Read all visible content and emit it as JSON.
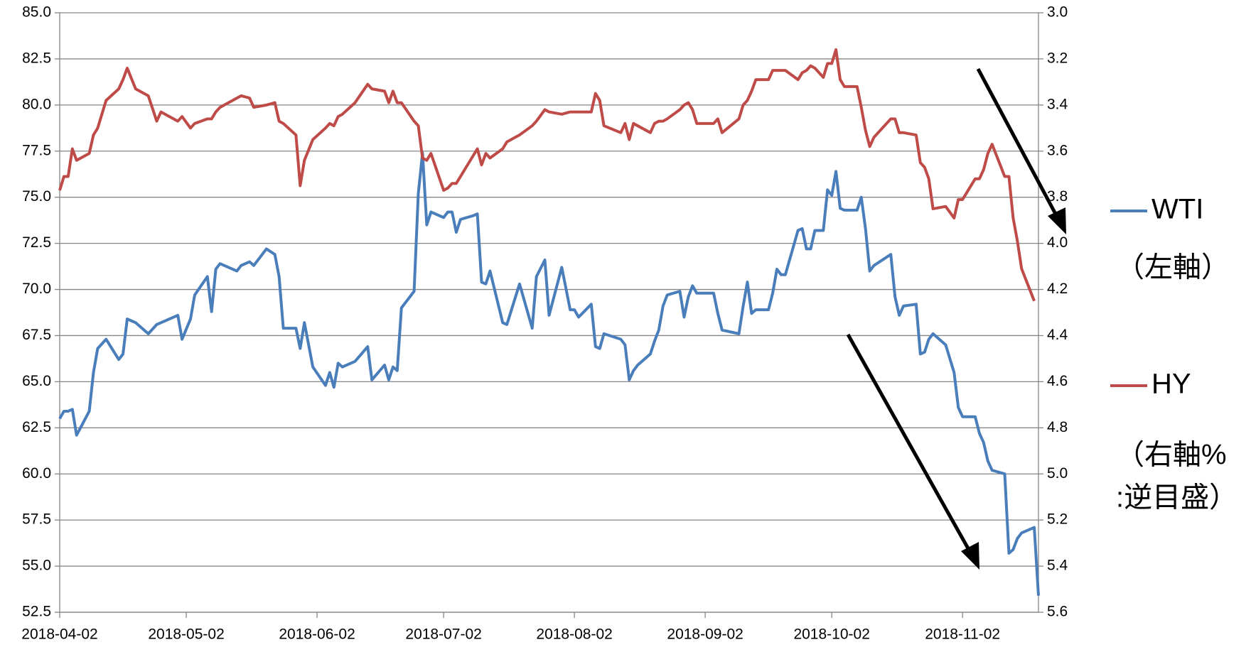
{
  "chart_data": {
    "type": "line",
    "xlim": [
      "2018-04-02",
      "2018-11-20"
    ],
    "xticks": [
      "2018-04-02",
      "2018-05-02",
      "2018-06-02",
      "2018-07-02",
      "2018-08-02",
      "2018-09-02",
      "2018-10-02",
      "2018-11-02"
    ],
    "ylim": [
      52.5,
      85.0
    ],
    "yticks": [
      {
        "value": 52.5,
        "label": "52.5"
      },
      {
        "value": 55,
        "label": "55.0"
      },
      57.5,
      {
        "value": 60,
        "label": "60.0"
      },
      62.5,
      {
        "value": 65,
        "label": "65.0"
      },
      67.5,
      {
        "value": 70,
        "label": "70.0"
      },
      72.5,
      {
        "value": 75,
        "label": "75.0"
      },
      77.5,
      {
        "value": 80,
        "label": "80.0"
      },
      82.5,
      {
        "value": 85,
        "label": "85.0"
      }
    ],
    "y2lim": [
      3.0,
      5.6
    ],
    "y2_reversed": true,
    "y2ticks": [
      {
        "value": 3,
        "label": "3.0"
      },
      3.2,
      3.4,
      3.6,
      3.8,
      {
        "value": 4,
        "label": "4.0"
      },
      4.2,
      4.4,
      4.6,
      4.8,
      {
        "value": 5,
        "label": "5.0"
      },
      5.2,
      5.4,
      5.6
    ],
    "grid": true,
    "legend": "right",
    "x": [
      "2018-04-02",
      "2018-04-03",
      "2018-04-04",
      "2018-04-05",
      "2018-04-06",
      "2018-04-09",
      "2018-04-10",
      "2018-04-11",
      "2018-04-13",
      "2018-04-16",
      "2018-04-17",
      "2018-04-18",
      "2018-04-20",
      "2018-04-23",
      "2018-04-25",
      "2018-04-26",
      "2018-04-30",
      "2018-05-01",
      "2018-05-03",
      "2018-05-04",
      "2018-05-07",
      "2018-05-08",
      "2018-05-09",
      "2018-05-10",
      "2018-05-14",
      "2018-05-15",
      "2018-05-17",
      "2018-05-18",
      "2018-05-21",
      "2018-05-23",
      "2018-05-24",
      "2018-05-25",
      "2018-05-28",
      "2018-05-29",
      "2018-05-30",
      "2018-06-01",
      "2018-06-04",
      "2018-06-05",
      "2018-06-06",
      "2018-06-07",
      "2018-06-08",
      "2018-06-11",
      "2018-06-14",
      "2018-06-15",
      "2018-06-18",
      "2018-06-19",
      "2018-06-20",
      "2018-06-21",
      "2018-06-22",
      "2018-06-25",
      "2018-06-26",
      "2018-06-27",
      "2018-06-28",
      "2018-06-29",
      "2018-07-02",
      "2018-07-03",
      "2018-07-04",
      "2018-07-05",
      "2018-07-06",
      "2018-07-09",
      "2018-07-10",
      "2018-07-11",
      "2018-07-12",
      "2018-07-13",
      "2018-07-16",
      "2018-07-17",
      "2018-07-20",
      "2018-07-23",
      "2018-07-24",
      "2018-07-26",
      "2018-07-27",
      "2018-07-30",
      "2018-08-01",
      "2018-08-02",
      "2018-08-03",
      "2018-08-06",
      "2018-08-07",
      "2018-08-08",
      "2018-08-09",
      "2018-08-13",
      "2018-08-14",
      "2018-08-15",
      "2018-08-16",
      "2018-08-17",
      "2018-08-20",
      "2018-08-21",
      "2018-08-22",
      "2018-08-23",
      "2018-08-24",
      "2018-08-27",
      "2018-08-28",
      "2018-08-29",
      "2018-08-30",
      "2018-08-31",
      "2018-09-04",
      "2018-09-05",
      "2018-09-06",
      "2018-09-10",
      "2018-09-11",
      "2018-09-12",
      "2018-09-13",
      "2018-09-14",
      "2018-09-17",
      "2018-09-18",
      "2018-09-19",
      "2018-09-20",
      "2018-09-21",
      "2018-09-24",
      "2018-09-25",
      "2018-09-26",
      "2018-09-27",
      "2018-09-28",
      "2018-09-30",
      "2018-10-01",
      "2018-10-02",
      "2018-10-03",
      "2018-10-04",
      "2018-10-05",
      "2018-10-08",
      "2018-10-09",
      "2018-10-10",
      "2018-10-11",
      "2018-10-12",
      "2018-10-16",
      "2018-10-17",
      "2018-10-18",
      "2018-10-19",
      "2018-10-22",
      "2018-10-23",
      "2018-10-24",
      "2018-10-25",
      "2018-10-26",
      "2018-10-29",
      "2018-10-31",
      "2018-11-01",
      "2018-11-02",
      "2018-11-05",
      "2018-11-06",
      "2018-11-07",
      "2018-11-08",
      "2018-11-09",
      "2018-11-12",
      "2018-11-13",
      "2018-11-14",
      "2018-11-15",
      "2018-11-16",
      "2018-11-19",
      "2018-11-20"
    ],
    "series": [
      {
        "name": "WTI",
        "note": [
          "（左軸）"
        ],
        "color": "#4a7ebb",
        "axis": "y",
        "values": [
          63.0,
          63.4,
          63.4,
          63.5,
          62.1,
          63.4,
          65.5,
          66.8,
          67.3,
          66.2,
          66.5,
          68.4,
          68.2,
          67.6,
          68.1,
          68.2,
          68.6,
          67.3,
          68.4,
          69.7,
          70.7,
          68.8,
          71.1,
          71.4,
          71.0,
          71.3,
          71.5,
          71.3,
          72.2,
          71.9,
          70.7,
          67.9,
          67.9,
          66.8,
          68.2,
          65.8,
          64.8,
          65.5,
          64.7,
          66.0,
          65.8,
          66.1,
          66.9,
          65.1,
          65.9,
          65.1,
          65.8,
          65.6,
          69.0,
          69.9,
          75.2,
          77.4,
          73.5,
          74.2,
          73.9,
          74.2,
          74.2,
          73.1,
          73.8,
          74.0,
          74.1,
          70.4,
          70.3,
          71.0,
          68.2,
          68.1,
          70.3,
          67.9,
          70.7,
          71.6,
          68.6,
          71.2,
          68.9,
          68.9,
          68.5,
          69.2,
          66.9,
          66.8,
          67.6,
          67.3,
          67.0,
          65.1,
          65.6,
          65.9,
          66.5,
          67.2,
          67.8,
          69.1,
          69.7,
          69.9,
          68.5,
          69.6,
          70.2,
          69.8,
          69.8,
          68.7,
          67.8,
          67.6,
          69.1,
          70.4,
          68.7,
          68.9,
          68.9,
          69.8,
          71.1,
          70.8,
          70.8,
          73.2,
          73.3,
          72.2,
          72.2,
          73.2,
          73.2,
          75.4,
          75.1,
          76.4,
          74.4,
          74.3,
          74.3,
          75.0,
          73.3,
          71.0,
          71.3,
          71.9,
          69.6,
          68.6,
          69.1,
          69.2,
          66.5,
          66.6,
          67.3,
          67.6,
          67.0,
          65.5,
          63.6,
          63.1,
          63.1,
          62.2,
          61.7,
          60.7,
          60.2,
          60.0,
          55.7,
          55.9,
          56.5,
          56.8,
          57.1,
          53.4
        ]
      },
      {
        "name": "HY",
        "note": [
          "（右軸%",
          ":逆目盛）"
        ],
        "color": "#be4b48",
        "axis": "y2",
        "values": [
          3.77,
          3.71,
          3.71,
          3.59,
          3.64,
          3.61,
          3.53,
          3.5,
          3.38,
          3.33,
          3.29,
          3.24,
          3.33,
          3.36,
          3.47,
          3.43,
          3.47,
          3.45,
          3.5,
          3.48,
          3.46,
          3.46,
          3.43,
          3.41,
          3.37,
          3.36,
          3.37,
          3.41,
          3.4,
          3.39,
          3.47,
          3.48,
          3.53,
          3.75,
          3.64,
          3.55,
          3.5,
          3.48,
          3.49,
          3.45,
          3.44,
          3.39,
          3.31,
          3.33,
          3.34,
          3.39,
          3.34,
          3.39,
          3.39,
          3.47,
          3.49,
          3.63,
          3.64,
          3.61,
          3.77,
          3.76,
          3.74,
          3.74,
          3.71,
          3.62,
          3.59,
          3.66,
          3.61,
          3.63,
          3.59,
          3.56,
          3.53,
          3.49,
          3.47,
          3.42,
          3.43,
          3.44,
          3.43,
          3.43,
          3.43,
          3.43,
          3.35,
          3.38,
          3.49,
          3.52,
          3.48,
          3.55,
          3.48,
          3.49,
          3.52,
          3.48,
          3.47,
          3.47,
          3.46,
          3.42,
          3.4,
          3.39,
          3.42,
          3.48,
          3.48,
          3.46,
          3.52,
          3.46,
          3.4,
          3.38,
          3.34,
          3.29,
          3.29,
          3.25,
          3.25,
          3.25,
          3.25,
          3.29,
          3.26,
          3.25,
          3.23,
          3.24,
          3.28,
          3.22,
          3.22,
          3.16,
          3.29,
          3.32,
          3.32,
          3.41,
          3.51,
          3.58,
          3.54,
          3.46,
          3.46,
          3.52,
          3.52,
          3.53,
          3.65,
          3.67,
          3.72,
          3.85,
          3.84,
          3.89,
          3.81,
          3.81,
          3.72,
          3.72,
          3.68,
          3.61,
          3.57,
          3.71,
          3.71,
          3.89,
          3.99,
          4.11,
          4.25,
          null
        ]
      }
    ]
  }
}
